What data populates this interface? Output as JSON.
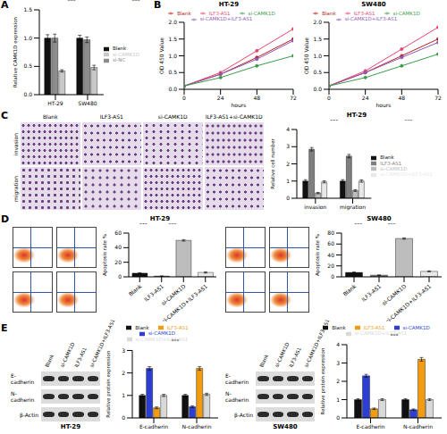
{
  "panel_labels": [
    "A",
    "B",
    "C",
    "D",
    "E"
  ],
  "chart_data": [
    {
      "type": "bar",
      "ylabel": "Relative CAMK1D expression",
      "categories": [
        "HT-29",
        "SW480"
      ],
      "series": [
        {
          "name": "Blank",
          "color": "#111111",
          "values": [
            1.0,
            1.0
          ],
          "errors": [
            0.06,
            0.05
          ]
        },
        {
          "name": "si-NC",
          "color": "#8c8c8c",
          "values": [
            1.0,
            0.97
          ],
          "errors": [
            0.07,
            0.05
          ]
        },
        {
          "name": "si-CAMK1D",
          "color": "#c8c8c8",
          "values": [
            0.42,
            0.48
          ],
          "errors": [
            0.02,
            0.04
          ]
        }
      ],
      "ylim": [
        0,
        1.5
      ],
      "yticks": [
        {
          "value": 0,
          "label": "0.0"
        },
        0.5,
        {
          "value": 1,
          "label": "1.0"
        },
        1.5
      ],
      "legend": "right",
      "grid": false,
      "annotations": [
        "***",
        "***"
      ]
    },
    {
      "type": "line",
      "title": "HT-29",
      "xlabel": "hours",
      "ylabel": "OD 450 Value",
      "x": [
        0,
        24,
        48,
        72
      ],
      "xlim": [
        0,
        72
      ],
      "xticks": [
        0,
        24,
        48,
        72
      ],
      "ylim": [
        0,
        2
      ],
      "yticks": [
        {
          "value": 0,
          "label": "0.0"
        },
        0.5,
        {
          "value": 1,
          "label": "1.0"
        },
        1.5,
        {
          "value": 2,
          "label": "2.0"
        }
      ],
      "marker": "circle",
      "legend": "top",
      "grid": false,
      "series": [
        {
          "name": "Blank",
          "color": "#b22222",
          "values": [
            0.1,
            0.45,
            0.95,
            1.5
          ]
        },
        {
          "name": "ILF3-AS1",
          "color": "#e8436f",
          "values": [
            0.1,
            0.5,
            1.15,
            1.8
          ]
        },
        {
          "name": "si-CAMK1D+ILF3-AS1",
          "color": "#8e5ab5",
          "values": [
            0.1,
            0.45,
            0.9,
            1.45
          ]
        },
        {
          "name": "si-CAMK1D",
          "color": "#3a9a4a",
          "values": [
            0.1,
            0.35,
            0.7,
            1.0
          ]
        }
      ]
    },
    {
      "type": "line",
      "title": "SW480",
      "xlabel": "hours",
      "ylabel": "OD 450 Value",
      "x": [
        0,
        24,
        48,
        72
      ],
      "xlim": [
        0,
        72
      ],
      "xticks": [
        0,
        24,
        48,
        72
      ],
      "ylim": [
        0,
        2
      ],
      "yticks": [
        {
          "value": 0,
          "label": "0.0"
        },
        0.5,
        {
          "value": 1,
          "label": "1.0"
        },
        1.5,
        {
          "value": 2,
          "label": "2.0"
        }
      ],
      "marker": "circle",
      "legend": "top",
      "grid": false,
      "series": [
        {
          "name": "Blank",
          "color": "#b22222",
          "values": [
            0.1,
            0.5,
            1.0,
            1.5
          ]
        },
        {
          "name": "ILF3-AS1",
          "color": "#e8436f",
          "values": [
            0.1,
            0.55,
            1.2,
            1.85
          ]
        },
        {
          "name": "si-CAMK1D+ILF3-AS1",
          "color": "#8e5ab5",
          "values": [
            0.1,
            0.5,
            0.95,
            1.4
          ]
        },
        {
          "name": "si-CAMK1D",
          "color": "#3a9a4a",
          "values": [
            0.1,
            0.35,
            0.7,
            1.05
          ]
        }
      ]
    },
    {
      "type": "bar",
      "title": "HT-29",
      "ylabel": "Relative cell number",
      "categories": [
        "invasion",
        "migration"
      ],
      "series": [
        {
          "name": "Blank",
          "color": "#111111",
          "values": [
            1.0,
            1.0
          ],
          "errors": [
            0.08,
            0.08
          ]
        },
        {
          "name": "ILF3-AS1",
          "color": "#7f7f7f",
          "values": [
            2.85,
            2.45
          ],
          "errors": [
            0.1,
            0.1
          ]
        },
        {
          "name": "si-CAMK1D",
          "color": "#bdbdbd",
          "values": [
            0.3,
            0.45
          ],
          "errors": [
            0.04,
            0.05
          ]
        },
        {
          "name": "si-CAMK1D+ILF3-AS1",
          "color": "#e8e8e8",
          "values": [
            0.95,
            1.0
          ],
          "errors": [
            0.06,
            0.07
          ]
        }
      ],
      "ylim": [
        0,
        4
      ],
      "yticks": [
        0,
        1,
        2,
        3,
        4
      ],
      "legend": "right",
      "grid": false,
      "annotations": [
        "***",
        "***",
        "***",
        "***"
      ]
    },
    {
      "type": "bar",
      "title": "HT-29",
      "ylabel": "Apoptosis rate %",
      "categories": [
        "Blank",
        "ILF3-AS1",
        "si-CAMK1D",
        "si-CAMK1D+ILF3-AS1"
      ],
      "values": [
        5,
        1,
        50,
        6
      ],
      "errors": [
        0.5,
        0.2,
        1,
        0.8
      ],
      "colors": [
        "#111111",
        "#7f7f7f",
        "#bdbdbd",
        "#e8e8e8"
      ],
      "ylim": [
        0,
        60
      ],
      "yticks": [
        0,
        20,
        40,
        60
      ],
      "grid": false,
      "annotations": [
        "***",
        "***"
      ]
    },
    {
      "type": "bar",
      "title": "SW480",
      "ylabel": "Apoptosis rate %",
      "categories": [
        "Blank",
        "ILF3-AS1",
        "si-CAMK1D",
        "si-CAMK1D+ILF3-AS1"
      ],
      "values": [
        8,
        3,
        70,
        10
      ],
      "errors": [
        0.8,
        0.4,
        1.2,
        0.9
      ],
      "colors": [
        "#111111",
        "#7f7f7f",
        "#bdbdbd",
        "#e8e8e8"
      ],
      "ylim": [
        0,
        80
      ],
      "yticks": [
        0,
        20,
        40,
        60,
        80
      ],
      "grid": false,
      "annotations": [
        "***",
        "***"
      ]
    },
    {
      "type": "bar",
      "ylabel": "Relative protein expression",
      "categories": [
        "E-cadherin",
        "N-cadherin"
      ],
      "series": [
        {
          "name": "Blank",
          "color": "#111111",
          "values": [
            1.0,
            1.0
          ],
          "errors": [
            0.05,
            0.05
          ]
        },
        {
          "name": "si-CAMK1D",
          "color": "#2c3fd1",
          "values": [
            2.2,
            0.5
          ],
          "errors": [
            0.08,
            0.04
          ]
        },
        {
          "name": "ILF3-AS1",
          "color": "#f39c12",
          "values": [
            0.45,
            2.2
          ],
          "errors": [
            0.04,
            0.08
          ]
        },
        {
          "name": "si-CAMK1D+ILF3-AS1",
          "color": "#d9d9d9",
          "values": [
            1.0,
            1.05
          ],
          "errors": [
            0.05,
            0.05
          ]
        }
      ],
      "ylim": [
        0,
        3
      ],
      "yticks": [
        0,
        1,
        2,
        3
      ],
      "legend": "top",
      "grid": false,
      "annotations": [
        "***",
        "***",
        "***",
        "***"
      ]
    },
    {
      "type": "bar",
      "ylabel": "Relative protein expression",
      "categories": [
        "E-cadherin",
        "N-cadherin"
      ],
      "series": [
        {
          "name": "Blank",
          "color": "#111111",
          "values": [
            1.0,
            1.0
          ],
          "errors": [
            0.05,
            0.05
          ]
        },
        {
          "name": "si-CAMK1D",
          "color": "#2c3fd1",
          "values": [
            2.3,
            0.45
          ],
          "errors": [
            0.08,
            0.04
          ]
        },
        {
          "name": "ILF3-AS1",
          "color": "#f39c12",
          "values": [
            0.5,
            3.2
          ],
          "errors": [
            0.04,
            0.1
          ]
        },
        {
          "name": "si-CAMK1D+ILF3-AS1",
          "color": "#d9d9d9",
          "values": [
            1.0,
            1.0
          ],
          "errors": [
            0.05,
            0.05
          ]
        }
      ],
      "ylim": [
        0,
        4
      ],
      "yticks": [
        0,
        1,
        2,
        3,
        4
      ],
      "legend": "top",
      "grid": false,
      "annotations": [
        "***",
        "***",
        "***",
        "***"
      ]
    }
  ],
  "images": {
    "C": {
      "columns": [
        "Blank",
        "ILF3-AS1",
        "si-CAMK1D",
        "ILF3-AS1+si-CAMK1D"
      ],
      "rows": [
        "invasion",
        "migration"
      ]
    },
    "E": [
      {
        "caption": "HT-29",
        "lanes": [
          "Blank",
          "si-CAMK1D",
          "ILF3-AS1",
          "si-CAMK1D+ILF3-AS1"
        ],
        "proteins": [
          "E-cadherin",
          "N-cadherin",
          "β-Actin"
        ]
      },
      {
        "caption": "SW480",
        "lanes": [
          "Blank",
          "si-CAMK1D",
          "ILF3-AS1",
          "si-CAMK1D+ILF3-AS1"
        ],
        "proteins": [
          "E-cadherin",
          "N-cadherin",
          "β-Actin"
        ]
      }
    ]
  }
}
